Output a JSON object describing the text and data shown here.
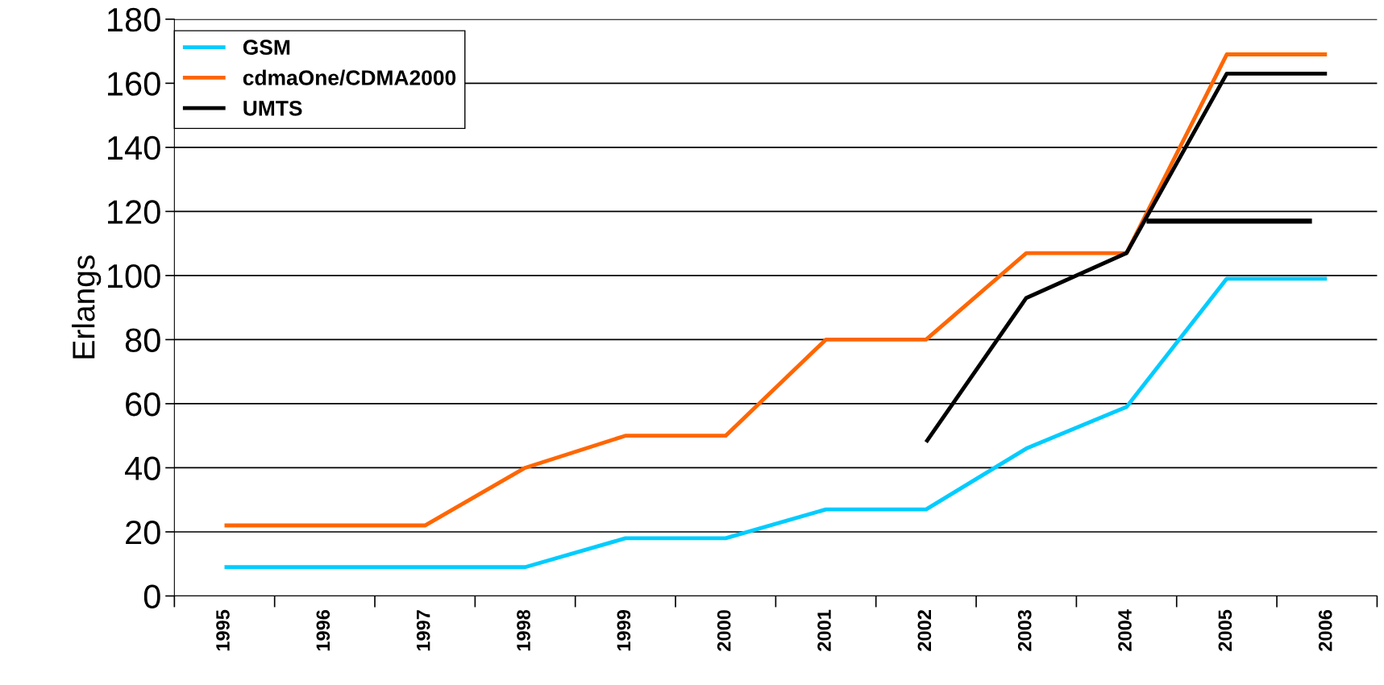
{
  "chart_data": {
    "type": "line",
    "ylabel": "Erlangs",
    "x": [
      1995,
      1996,
      1997,
      1998,
      1999,
      2000,
      2001,
      2002,
      2003,
      2004,
      2005,
      2006
    ],
    "series": [
      {
        "name": "GSM",
        "color": "#00ccff",
        "values": [
          9,
          9,
          9,
          9,
          18,
          18,
          27,
          27,
          46,
          59,
          99,
          99
        ]
      },
      {
        "name": "cdmaOne/CDMA2000",
        "color": "#ff6600",
        "values": [
          22,
          22,
          22,
          40,
          50,
          50,
          80,
          80,
          107,
          107,
          169,
          169
        ]
      },
      {
        "name": "UMTS",
        "color": "#000000",
        "values": [
          null,
          null,
          null,
          null,
          null,
          null,
          null,
          48,
          93,
          107,
          163,
          163
        ]
      },
      {
        "color": "#000000",
        "x": [
          2004.2,
          2005.85
        ],
        "values": [
          117,
          117
        ]
      }
    ],
    "xlim": [
      1994.5,
      2006.5
    ],
    "xticks": [
      1995,
      1996,
      1997,
      1998,
      1999,
      2000,
      2001,
      2002,
      2003,
      2004,
      2005,
      2006,
      {
        "value": 1994.5,
        "label": null
      },
      {
        "value": 1995.5,
        "label": null
      },
      {
        "value": 1996.5,
        "label": null
      },
      {
        "value": 1997.5,
        "label": null
      },
      {
        "value": 1998.5,
        "label": null
      },
      {
        "value": 1999.5,
        "label": null
      },
      {
        "value": 2000.5,
        "label": null
      },
      {
        "value": 2001.5,
        "label": null
      },
      {
        "value": 2002.5,
        "label": null
      },
      {
        "value": 2003.5,
        "label": null
      },
      {
        "value": 2004.5,
        "label": null
      },
      {
        "value": 2005.5,
        "label": null
      },
      {
        "value": 2006.5,
        "label": null
      }
    ],
    "ylim": [
      0,
      180
    ],
    "yticks": [
      0,
      20,
      40,
      60,
      80,
      100,
      120,
      140,
      160,
      180
    ],
    "grid": "y",
    "legend": "top left",
    "marker": "none",
    "line_style": "solid"
  }
}
